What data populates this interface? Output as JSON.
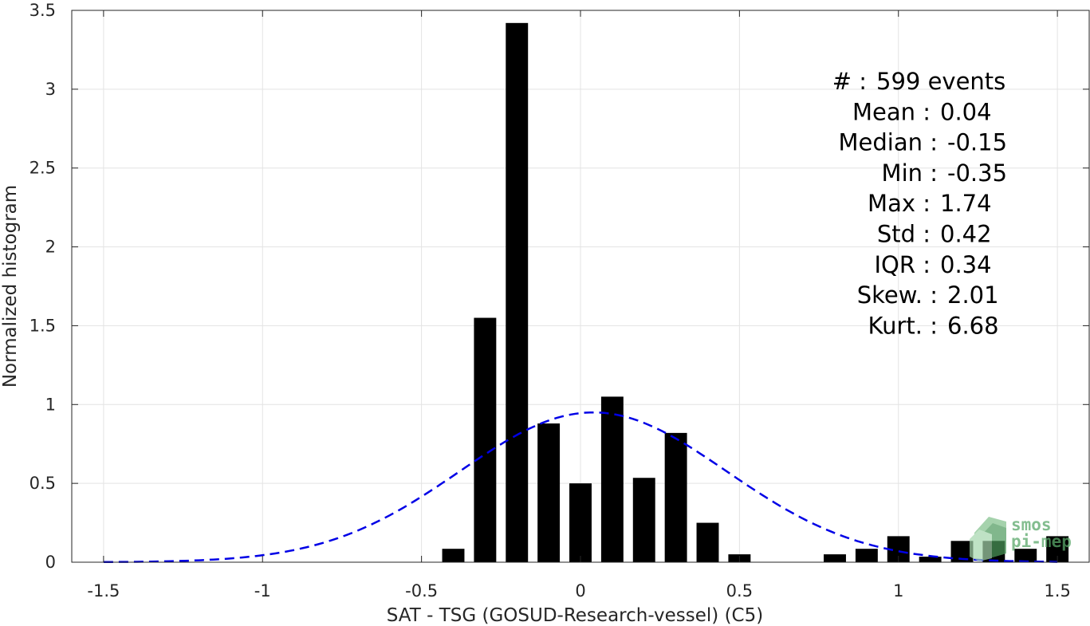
{
  "chart_data": {
    "type": "bar",
    "xlabel": "SAT - TSG (GOSUD-Research-vessel) (C5)",
    "ylabel": "Normalized histogram",
    "xlim": [
      -1.6,
      1.6
    ],
    "ylim": [
      0,
      3.5
    ],
    "xticks": [
      -1.5,
      -1,
      -0.5,
      0,
      0.5,
      1,
      1.5
    ],
    "xtick_labels": [
      "-1.5",
      "-1",
      "-0.5",
      "0",
      "0.5",
      "1",
      "1.5"
    ],
    "yticks": [
      0,
      0.5,
      1,
      1.5,
      2,
      2.5,
      3,
      3.5
    ],
    "ytick_labels": [
      "0",
      "0.5",
      "1",
      "1.5",
      "2",
      "2.5",
      "3",
      "3.5"
    ],
    "grid": true,
    "bar_width": 0.07,
    "bar_color": "#000000",
    "bars": [
      {
        "x": -0.4,
        "y": 0.085
      },
      {
        "x": -0.3,
        "y": 1.55
      },
      {
        "x": -0.2,
        "y": 3.42
      },
      {
        "x": -0.1,
        "y": 0.88
      },
      {
        "x": 0.0,
        "y": 0.5
      },
      {
        "x": 0.1,
        "y": 1.05
      },
      {
        "x": 0.2,
        "y": 0.535
      },
      {
        "x": 0.3,
        "y": 0.82
      },
      {
        "x": 0.4,
        "y": 0.25
      },
      {
        "x": 0.5,
        "y": 0.05
      },
      {
        "x": 0.8,
        "y": 0.05
      },
      {
        "x": 0.9,
        "y": 0.085
      },
      {
        "x": 1.0,
        "y": 0.165
      },
      {
        "x": 1.1,
        "y": 0.035
      },
      {
        "x": 1.2,
        "y": 0.135
      },
      {
        "x": 1.3,
        "y": 0.135
      },
      {
        "x": 1.4,
        "y": 0.085
      },
      {
        "x": 1.5,
        "y": 0.165
      }
    ],
    "fit_curve": {
      "style": "dashed",
      "color": "#0000e6",
      "mean": 0.04,
      "std": 0.42,
      "x_range": [
        -1.5,
        1.5
      ]
    },
    "stats": [
      {
        "label": "#  :",
        "value": "599 events"
      },
      {
        "label": "Mean :",
        "value": "0.04"
      },
      {
        "label": "Median :",
        "value": "-0.15"
      },
      {
        "label": "Min :",
        "value": "-0.35"
      },
      {
        "label": "Max :",
        "value": "1.74"
      },
      {
        "label": "Std :",
        "value": "0.42"
      },
      {
        "label": "IQR :",
        "value": "0.34"
      },
      {
        "label": "Skew. :",
        "value": "2.01"
      },
      {
        "label": "Kurt. :",
        "value": "6.68"
      }
    ]
  },
  "logo": {
    "line1": "smos",
    "line2": "pi-mep",
    "color": "#5aa86a"
  }
}
